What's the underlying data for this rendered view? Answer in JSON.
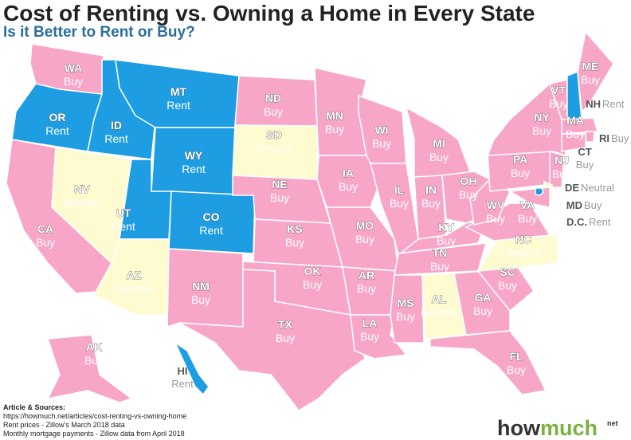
{
  "title": "Cost of Renting vs. Owning a Home in Every State",
  "subtitle": "Is it Better to Rent or Buy?",
  "states": [
    {
      "abbr": "WA",
      "verdict": "Buy",
      "color": "#f7a6c7"
    },
    {
      "abbr": "OR",
      "verdict": "Rent",
      "color": "#1e9de3"
    },
    {
      "abbr": "CA",
      "verdict": "Buy",
      "color": "#f7a6c7"
    },
    {
      "abbr": "NV",
      "verdict": "Neutral",
      "color": "#fdfbcf"
    },
    {
      "abbr": "ID",
      "verdict": "Rent",
      "color": "#1e9de3"
    },
    {
      "abbr": "MT",
      "verdict": "Rent",
      "color": "#1e9de3"
    },
    {
      "abbr": "WY",
      "verdict": "Rent",
      "color": "#1e9de3"
    },
    {
      "abbr": "UT",
      "verdict": "Rent",
      "color": "#1e9de3"
    },
    {
      "abbr": "CO",
      "verdict": "Rent",
      "color": "#1e9de3"
    },
    {
      "abbr": "AZ",
      "verdict": "Neutral",
      "color": "#fdfbcf"
    },
    {
      "abbr": "NM",
      "verdict": "Buy",
      "color": "#f7a6c7"
    },
    {
      "abbr": "ND",
      "verdict": "Buy",
      "color": "#f7a6c7"
    },
    {
      "abbr": "SD",
      "verdict": "Neutral",
      "color": "#fdfbcf"
    },
    {
      "abbr": "NE",
      "verdict": "Buy",
      "color": "#f7a6c7"
    },
    {
      "abbr": "KS",
      "verdict": "Buy",
      "color": "#f7a6c7"
    },
    {
      "abbr": "OK",
      "verdict": "Buy",
      "color": "#f7a6c7"
    },
    {
      "abbr": "TX",
      "verdict": "Buy",
      "color": "#f7a6c7"
    },
    {
      "abbr": "MN",
      "verdict": "Buy",
      "color": "#f7a6c7"
    },
    {
      "abbr": "IA",
      "verdict": "Buy",
      "color": "#f7a6c7"
    },
    {
      "abbr": "MO",
      "verdict": "Buy",
      "color": "#f7a6c7"
    },
    {
      "abbr": "AR",
      "verdict": "Buy",
      "color": "#f7a6c7"
    },
    {
      "abbr": "LA",
      "verdict": "Buy",
      "color": "#f7a6c7"
    },
    {
      "abbr": "WI",
      "verdict": "Buy",
      "color": "#f7a6c7"
    },
    {
      "abbr": "IL",
      "verdict": "Buy",
      "color": "#f7a6c7"
    },
    {
      "abbr": "MI",
      "verdict": "Buy",
      "color": "#f7a6c7"
    },
    {
      "abbr": "IN",
      "verdict": "Buy",
      "color": "#f7a6c7"
    },
    {
      "abbr": "OH",
      "verdict": "Buy",
      "color": "#f7a6c7"
    },
    {
      "abbr": "KY",
      "verdict": "Buy",
      "color": "#f7a6c7"
    },
    {
      "abbr": "TN",
      "verdict": "Buy",
      "color": "#f7a6c7"
    },
    {
      "abbr": "MS",
      "verdict": "Buy",
      "color": "#f7a6c7"
    },
    {
      "abbr": "AL",
      "verdict": "Neutral",
      "color": "#fdfbcf"
    },
    {
      "abbr": "GA",
      "verdict": "Buy",
      "color": "#f7a6c7"
    },
    {
      "abbr": "FL",
      "verdict": "Buy",
      "color": "#f7a6c7"
    },
    {
      "abbr": "SC",
      "verdict": "Buy",
      "color": "#f7a6c7"
    },
    {
      "abbr": "NC",
      "verdict": "Neutral",
      "color": "#fdfbcf"
    },
    {
      "abbr": "VA",
      "verdict": "Buy",
      "color": "#f7a6c7"
    },
    {
      "abbr": "WV",
      "verdict": "Buy",
      "color": "#f7a6c7"
    },
    {
      "abbr": "PA",
      "verdict": "Buy",
      "color": "#f7a6c7"
    },
    {
      "abbr": "NY",
      "verdict": "Buy",
      "color": "#f7a6c7"
    },
    {
      "abbr": "VT",
      "verdict": "Buy",
      "color": "#f7a6c7"
    },
    {
      "abbr": "NH",
      "verdict": "Rent",
      "color": "#1e9de3"
    },
    {
      "abbr": "ME",
      "verdict": "Buy",
      "color": "#f7a6c7"
    },
    {
      "abbr": "MA",
      "verdict": "Buy",
      "color": "#f7a6c7"
    },
    {
      "abbr": "RI",
      "verdict": "Buy",
      "color": "#f7a6c7"
    },
    {
      "abbr": "CT",
      "verdict": "Buy",
      "color": "#f7a6c7"
    },
    {
      "abbr": "NJ",
      "verdict": "Buy",
      "color": "#f7a6c7"
    },
    {
      "abbr": "DE",
      "verdict": "Neutral",
      "color": "#fdfbcf"
    },
    {
      "abbr": "MD",
      "verdict": "Buy",
      "color": "#f7a6c7"
    },
    {
      "abbr": "D.C.",
      "verdict": "Rent",
      "color": "#1e9de3"
    },
    {
      "abbr": "AK",
      "verdict": "Buy",
      "color": "#f7a6c7"
    },
    {
      "abbr": "HI",
      "verdict": "Rent",
      "color": "#1e9de3"
    }
  ],
  "sources": {
    "heading": "Article & Sources:",
    "lines": [
      "https://howmuch.net/articles/cost-renting-vs-owning-home",
      "Rent prices - Zillow's March 2018 data",
      "Monthly mortgage payments - Zillow data from April 2018"
    ]
  },
  "logo": {
    "how": "how",
    "much": "much",
    "suffix": "net"
  }
}
